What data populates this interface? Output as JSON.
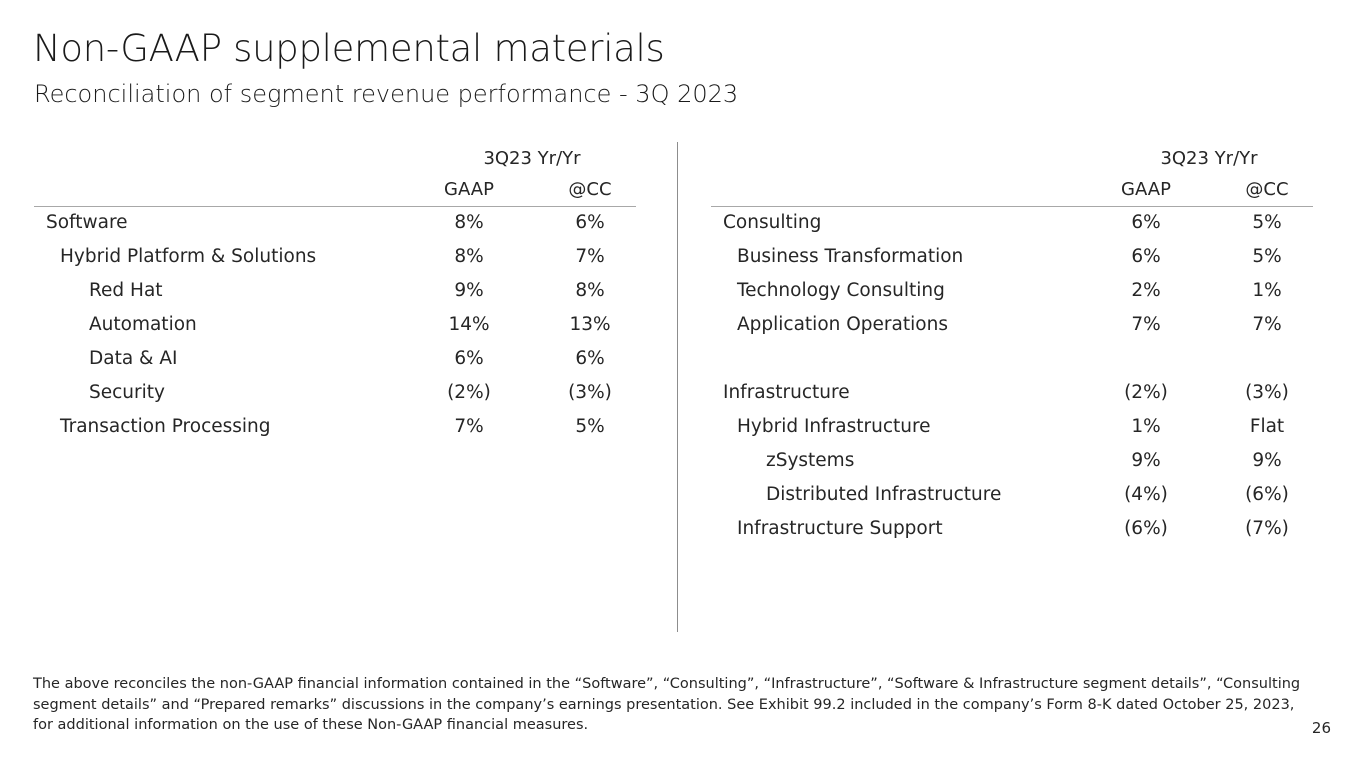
{
  "title": "Non-GAAP supplemental materials",
  "subtitle": "Reconciliation of segment revenue performance - 3Q 2023",
  "left_table": {
    "group_header": "3Q23 Yr/Yr",
    "columns": [
      "GAAP",
      "@CC"
    ],
    "rows": [
      {
        "label": "Software",
        "level": 0,
        "gaap": "8%",
        "cc": "6%"
      },
      {
        "label": "Hybrid Platform & Solutions",
        "level": 1,
        "gaap": "8%",
        "cc": "7%"
      },
      {
        "label": "Red Hat",
        "level": 2,
        "gaap": "9%",
        "cc": "8%"
      },
      {
        "label": "Automation",
        "level": 2,
        "gaap": "14%",
        "cc": "13%"
      },
      {
        "label": "Data & AI",
        "level": 2,
        "gaap": "6%",
        "cc": "6%"
      },
      {
        "label": "Security",
        "level": 2,
        "gaap": "(2%)",
        "cc": "(3%)"
      },
      {
        "label": "Transaction Processing",
        "level": 1,
        "gaap": "7%",
        "cc": "5%"
      }
    ]
  },
  "right_table": {
    "group_header": "3Q23 Yr/Yr",
    "columns": [
      "GAAP",
      "@CC"
    ],
    "rows": [
      {
        "label": "Consulting",
        "level": 0,
        "gaap": "6%",
        "cc": "5%"
      },
      {
        "label": "Business Transformation",
        "level": 1,
        "gaap": "6%",
        "cc": "5%"
      },
      {
        "label": "Technology Consulting",
        "level": 1,
        "gaap": "2%",
        "cc": "1%"
      },
      {
        "label": "Application Operations",
        "level": 1,
        "gaap": "7%",
        "cc": "7%"
      },
      {
        "label": "",
        "level": 0,
        "gaap": "",
        "cc": ""
      },
      {
        "label": "Infrastructure",
        "level": 0,
        "gaap": "(2%)",
        "cc": "(3%)"
      },
      {
        "label": "Hybrid Infrastructure",
        "level": 1,
        "gaap": "1%",
        "cc": "Flat"
      },
      {
        "label": "zSystems",
        "level": 2,
        "gaap": "9%",
        "cc": "9%"
      },
      {
        "label": "Distributed Infrastructure",
        "level": 2,
        "gaap": "(4%)",
        "cc": "(6%)"
      },
      {
        "label": "Infrastructure Support",
        "level": 1,
        "gaap": "(6%)",
        "cc": "(7%)"
      }
    ]
  },
  "footnote": "The above reconciles the non-GAAP financial information contained in the “Software”, “Consulting”, “Infrastructure”, “Software & Infrastructure segment details”, “Consulting segment details” and “Prepared remarks” discussions in the company’s earnings presentation. See Exhibit 99.2 included in the company’s Form 8-K dated October 25, 2023, for additional information on the use of these Non-GAAP financial measures.",
  "page_number": "26"
}
